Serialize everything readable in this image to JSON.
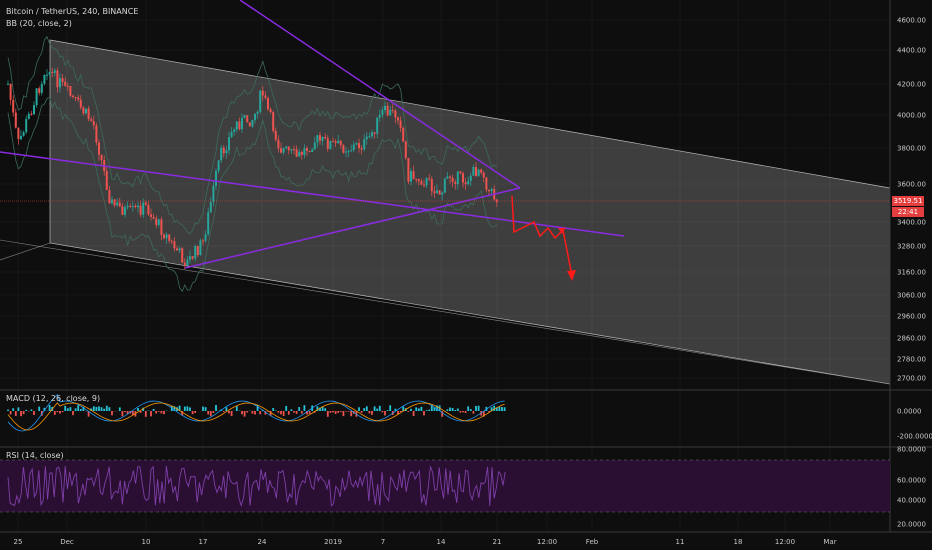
{
  "legend": {
    "main": "Bitcoin / TetherUS, 240, BINANCE",
    "bb": "BB (20, close, 2)",
    "macd": "MACD (12, 26, close, 9)",
    "rsi": "RSI (14, close)"
  },
  "last_price": "3519.51",
  "countdown": "22:41",
  "colors": {
    "background": "#0e0e0e",
    "grid": "#1f1f1f",
    "up": "#26a69a",
    "down": "#ef5350",
    "bb_band": "#3d6b5c",
    "trendline": "#8a2be2",
    "arrow": "#ff1a1a",
    "channel": "#ffffff",
    "rsi_line": "#7e3fa8",
    "rsi_band": "#2a0f33"
  },
  "chart_data": [
    {
      "type": "candlestick",
      "title": "Bitcoin / TetherUS, 240, BINANCE",
      "x_ticks": [
        "25",
        "Dec",
        "10",
        "17",
        "24",
        "2019",
        "7",
        "14",
        "21",
        "12:00",
        "Feb",
        "11",
        "18",
        "12:00",
        "Mar"
      ],
      "y_ticks": [
        "4600.00",
        "4400.00",
        "4200.00",
        "4000.00",
        "3800.00",
        "3600.00",
        "3400.00",
        "3280.00",
        "3160.00",
        "3060.00",
        "2960.00",
        "2860.00",
        "2780.00",
        "2700.00"
      ],
      "ohlc_close_path": [
        {
          "x": "Nov 24",
          "close": 4200
        },
        {
          "x": "Nov 25",
          "close": 3820
        },
        {
          "x": "Nov 27",
          "close": 4050
        },
        {
          "x": "Nov 29",
          "close": 4300
        },
        {
          "x": "Dec 1",
          "close": 4150
        },
        {
          "x": "Dec 4",
          "close": 3950
        },
        {
          "x": "Dec 6",
          "close": 3500
        },
        {
          "x": "Dec 8",
          "close": 3450
        },
        {
          "x": "Dec 10",
          "close": 3480
        },
        {
          "x": "Dec 13",
          "close": 3300
        },
        {
          "x": "Dec 15",
          "close": 3200
        },
        {
          "x": "Dec 17",
          "close": 3300
        },
        {
          "x": "Dec 19",
          "close": 3750
        },
        {
          "x": "Dec 21",
          "close": 3950
        },
        {
          "x": "Dec 23",
          "close": 3980
        },
        {
          "x": "Dec 24",
          "close": 4150
        },
        {
          "x": "Dec 26",
          "close": 3800
        },
        {
          "x": "Dec 28",
          "close": 3750
        },
        {
          "x": "Dec 30",
          "close": 3850
        },
        {
          "x": "Jan 1",
          "close": 3820
        },
        {
          "x": "Jan 3",
          "close": 3800
        },
        {
          "x": "Jan 5",
          "close": 3830
        },
        {
          "x": "Jan 7",
          "close": 4020
        },
        {
          "x": "Jan 9",
          "close": 4000
        },
        {
          "x": "Jan 10",
          "close": 3650
        },
        {
          "x": "Jan 12",
          "close": 3620
        },
        {
          "x": "Jan 14",
          "close": 3550
        },
        {
          "x": "Jan 15",
          "close": 3650
        },
        {
          "x": "Jan 17",
          "close": 3620
        },
        {
          "x": "Jan 19",
          "close": 3700
        },
        {
          "x": "Jan 20",
          "close": 3560
        },
        {
          "x": "Jan 21",
          "close": 3520
        }
      ],
      "last_value": 3519.51
    },
    {
      "type": "line",
      "title": "MACD (12, 26, close, 9)",
      "y_ticks": [
        "0.0000",
        "-200.0000"
      ]
    },
    {
      "type": "line",
      "title": "RSI (14, close)",
      "y_ticks": [
        "80.0000",
        "60.0000",
        "40.0000",
        "20.0000"
      ],
      "reference_lines": [
        70,
        30
      ]
    }
  ]
}
